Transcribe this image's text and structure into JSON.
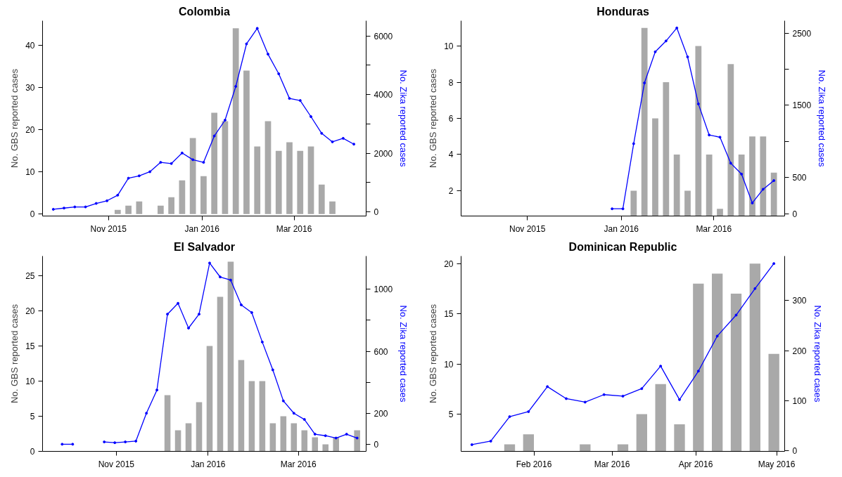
{
  "chart_data": [
    {
      "type": "bar",
      "title": "Colombia",
      "ylabel": "No. GBS reported cases",
      "y2label": "No. Zika reported cases",
      "x": [
        "2015-09-26",
        "2015-10-03",
        "2015-10-10",
        "2015-10-17",
        "2015-10-24",
        "2015-10-31",
        "2015-11-07",
        "2015-11-14",
        "2015-11-21",
        "2015-11-28",
        "2015-12-05",
        "2015-12-12",
        "2015-12-19",
        "2015-12-26",
        "2016-01-02",
        "2016-01-09",
        "2016-01-16",
        "2016-01-23",
        "2016-01-30",
        "2016-02-06",
        "2016-02-13",
        "2016-02-20",
        "2016-02-27",
        "2016-03-05",
        "2016-03-12",
        "2016-03-19",
        "2016-03-26",
        "2016-04-02",
        "2016-04-09"
      ],
      "series": [
        {
          "color": "#a9a9a9",
          "values": [
            null,
            null,
            null,
            null,
            null,
            null,
            1,
            2,
            3,
            null,
            2,
            4,
            8,
            18,
            9,
            24,
            22,
            44,
            34,
            16,
            22,
            15,
            17,
            15,
            16,
            7,
            3,
            null,
            null
          ]
        },
        {
          "type": "line",
          "axis": "y2",
          "color": "#0000ff",
          "values": [
            90,
            130,
            170,
            170,
            290,
            380,
            570,
            1150,
            1230,
            1370,
            1690,
            1650,
            2010,
            1780,
            1690,
            2590,
            3130,
            4280,
            5730,
            6260,
            5380,
            4710,
            3870,
            3800,
            3250,
            2680,
            2390,
            2510,
            2310
          ]
        }
      ],
      "xlim": [
        "2015-09-19",
        "2016-04-17"
      ],
      "ylim": [
        -0.45,
        45.8
      ],
      "y2lim": [
        -140,
        6520
      ],
      "xticks": [
        {
          "value": "2015-11-01",
          "label": "Nov 2015"
        },
        {
          "value": "2016-01-01",
          "label": "Jan 2016"
        },
        {
          "value": "2016-03-01",
          "label": "Mar 2016"
        }
      ],
      "yticks": [
        0,
        10,
        20,
        30,
        40
      ],
      "y2ticks": [
        0,
        {
          "value": 1000,
          "label": null
        },
        2000,
        {
          "value": 3000,
          "label": null
        },
        4000,
        {
          "value": 5000,
          "label": null
        },
        6000
      ],
      "marker": "circle"
    },
    {
      "type": "bar",
      "title": "Honduras",
      "ylabel": "No. GBS reported cases",
      "y2label": "No. Zika reported cases",
      "x": [
        "2015-12-26",
        "2016-01-02",
        "2016-01-09",
        "2016-01-16",
        "2016-01-23",
        "2016-01-30",
        "2016-02-06",
        "2016-02-13",
        "2016-02-20",
        "2016-02-27",
        "2016-03-05",
        "2016-03-12",
        "2016-03-19",
        "2016-03-26",
        "2016-04-02",
        "2016-04-09"
      ],
      "series": [
        {
          "color": "#a9a9a9",
          "values": [
            null,
            null,
            2,
            11,
            6,
            8,
            4,
            2,
            10,
            4,
            1,
            9,
            4,
            5,
            5,
            3
          ]
        },
        {
          "type": "line",
          "axis": "y2",
          "color": "#0000ff",
          "values": [
            70,
            70,
            970,
            1810,
            2240,
            2390,
            2570,
            2170,
            1520,
            1090,
            1060,
            700,
            550,
            150,
            340,
            460
          ]
        }
      ],
      "xlim": [
        "2015-09-19",
        "2016-04-16"
      ],
      "ylim": [
        0.6,
        11.4
      ],
      "y2lim": [
        -30,
        2670
      ],
      "xticks": [
        {
          "value": "2015-11-01",
          "label": "Nov 2015"
        },
        {
          "value": "2016-01-01",
          "label": "Jan 2016"
        },
        {
          "value": "2016-03-01",
          "label": "Mar 2016"
        }
      ],
      "yticks": [
        2,
        4,
        6,
        8,
        10
      ],
      "y2ticks": [
        0,
        500,
        {
          "value": 1000,
          "label": null
        },
        1500,
        {
          "value": 2000,
          "label": null
        },
        2500
      ],
      "marker": "circle"
    },
    {
      "type": "bar",
      "title": "El Salvador",
      "ylabel": "No. GBS reported cases",
      "y2label": "No. Zika reported cases",
      "x": [
        "2015-09-26",
        "2015-10-03",
        "2015-10-10",
        "2015-10-17",
        "2015-10-24",
        "2015-10-31",
        "2015-11-07",
        "2015-11-14",
        "2015-11-21",
        "2015-11-28",
        "2015-12-05",
        "2015-12-12",
        "2015-12-19",
        "2015-12-26",
        "2016-01-02",
        "2016-01-09",
        "2016-01-16",
        "2016-01-23",
        "2016-01-30",
        "2016-02-06",
        "2016-02-13",
        "2016-02-20",
        "2016-02-27",
        "2016-03-05",
        "2016-03-12",
        "2016-03-19",
        "2016-03-26",
        "2016-04-02",
        "2016-04-09"
      ],
      "series": [
        {
          "color": "#a9a9a9",
          "values": [
            null,
            null,
            null,
            null,
            null,
            null,
            null,
            null,
            null,
            null,
            8,
            3,
            4,
            7,
            15,
            22,
            27,
            13,
            10,
            10,
            4,
            5,
            4,
            3,
            2,
            1,
            2,
            null,
            3
          ]
        },
        {
          "type": "line",
          "axis": "y2",
          "color": "#0000ff",
          "values": [
            0,
            0,
            null,
            null,
            15,
            10,
            15,
            20,
            200,
            350,
            840,
            910,
            750,
            840,
            1170,
            1080,
            1060,
            900,
            850,
            660,
            480,
            280,
            200,
            160,
            65,
            55,
            40,
            65,
            40
          ]
        }
      ],
      "xlim": [
        "2015-09-13",
        "2016-04-15"
      ],
      "ylim": [
        0,
        27.8
      ],
      "y2lim": [
        -46,
        1215
      ],
      "xticks": [
        {
          "value": "2015-11-01",
          "label": "Nov 2015"
        },
        {
          "value": "2016-01-01",
          "label": "Jan 2016"
        },
        {
          "value": "2016-03-01",
          "label": "Mar 2016"
        }
      ],
      "yticks": [
        0,
        5,
        10,
        15,
        20,
        25
      ],
      "y2ticks": [
        0,
        200,
        {
          "value": 400,
          "label": null
        },
        600,
        {
          "value": 800,
          "label": null
        },
        1000
      ],
      "marker": "circle"
    },
    {
      "type": "bar",
      "title": "Dominican Republic",
      "ylabel": "No. GBS reported cases",
      "y2label": "No. Zika reported cases",
      "x": [
        "2016-01-09",
        "2016-01-16",
        "2016-01-23",
        "2016-01-30",
        "2016-02-06",
        "2016-02-13",
        "2016-02-20",
        "2016-02-27",
        "2016-03-05",
        "2016-03-12",
        "2016-03-19",
        "2016-03-26",
        "2016-04-02",
        "2016-04-09",
        "2016-04-16",
        "2016-04-23",
        "2016-04-30"
      ],
      "series": [
        {
          "color": "#a9a9a9",
          "values": [
            null,
            null,
            2,
            3,
            null,
            null,
            2,
            null,
            2,
            5,
            8,
            4,
            18,
            19,
            17,
            20,
            11
          ]
        },
        {
          "type": "line",
          "axis": "y2",
          "color": "#0000ff",
          "values": [
            12,
            19,
            68,
            78,
            128,
            104,
            97,
            112,
            109,
            124,
            169,
            102,
            159,
            229,
            271,
            324,
            374
          ]
        }
      ],
      "xlim": [
        "2016-01-05",
        "2016-05-04"
      ],
      "ylim": [
        1.3,
        20.75
      ],
      "y2lim": [
        -1.4,
        389
      ],
      "xticks": [
        {
          "value": "2016-02-01",
          "label": "Feb 2016"
        },
        {
          "value": "2016-03-01",
          "label": "Mar 2016"
        },
        {
          "value": "2016-04-01",
          "label": "Apr 2016"
        },
        {
          "value": "2016-05-01",
          "label": "May 2016"
        }
      ],
      "yticks": [
        5,
        10,
        15,
        20
      ],
      "y2ticks": [
        0,
        100,
        200,
        300
      ],
      "marker": "circle"
    }
  ]
}
